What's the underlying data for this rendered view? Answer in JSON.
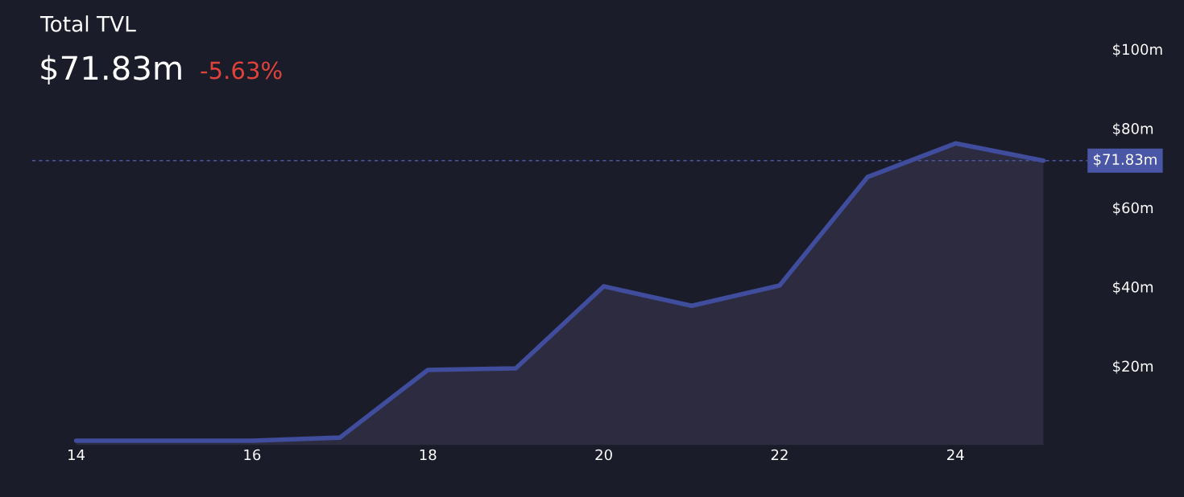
{
  "chart_data": {
    "type": "area",
    "title": "Total TVL",
    "subtitle": "$71.83m",
    "annotations": [
      "-5.63%"
    ],
    "x": [
      14,
      15,
      16,
      17,
      18,
      19,
      20,
      21,
      22,
      23,
      24,
      25
    ],
    "series": [
      {
        "color": "#3f4d9c",
        "values": [
          1.1,
          1.1,
          1.1,
          1.9,
          19.0,
          19.4,
          40.1,
          35.2,
          40.3,
          67.7,
          76.2,
          71.83
        ]
      }
    ],
    "xlim": [
      13.5,
      25.5
    ],
    "xticks": [
      14,
      16,
      18,
      20,
      22,
      24
    ],
    "ylim": [
      0,
      112
    ],
    "yticks": [
      {
        "value": 20,
        "label": "$20m"
      },
      {
        "value": 40,
        "label": "$40m"
      },
      {
        "value": 60,
        "label": "$60m"
      },
      {
        "value": 80,
        "label": "$80m"
      },
      {
        "value": 100,
        "label": "$100m"
      }
    ],
    "ref_lines": [
      {
        "axis": "y",
        "value": 71.83,
        "label": "$71.83m",
        "color": "#4a56a6",
        "line_style": "dashed"
      }
    ],
    "grid": false,
    "legend": false
  }
}
